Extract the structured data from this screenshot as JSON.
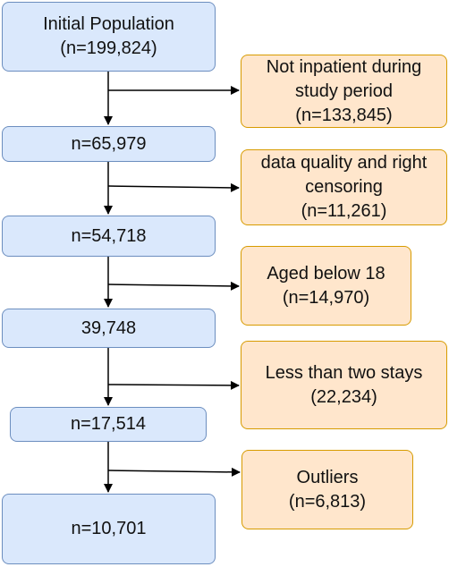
{
  "main_steps": [
    {
      "lines": [
        "Initial Population",
        "(n=199,824)"
      ]
    },
    {
      "lines": [
        "n=65,979"
      ]
    },
    {
      "lines": [
        "n=54,718"
      ]
    },
    {
      "lines": [
        "39,748"
      ]
    },
    {
      "lines": [
        "n=17,514"
      ]
    },
    {
      "lines": [
        "n=10,701"
      ]
    }
  ],
  "exclusions": [
    {
      "lines": [
        "Not inpatient during",
        "study period",
        "(n=133,845)"
      ]
    },
    {
      "lines": [
        "data quality and right",
        "censoring",
        "(n=11,261)"
      ]
    },
    {
      "lines": [
        "Aged below 18",
        "(n=14,970)"
      ]
    },
    {
      "lines": [
        "Less than two stays",
        "(22,234)"
      ]
    },
    {
      "lines": [
        "Outliers",
        "(n=6,813)"
      ]
    }
  ],
  "colors": {
    "main_fill": "#dae8fc",
    "main_border": "#6c8ebf",
    "exclusion_fill": "#ffe6cc",
    "exclusion_border": "#d79b00",
    "arrow": "#000000"
  }
}
